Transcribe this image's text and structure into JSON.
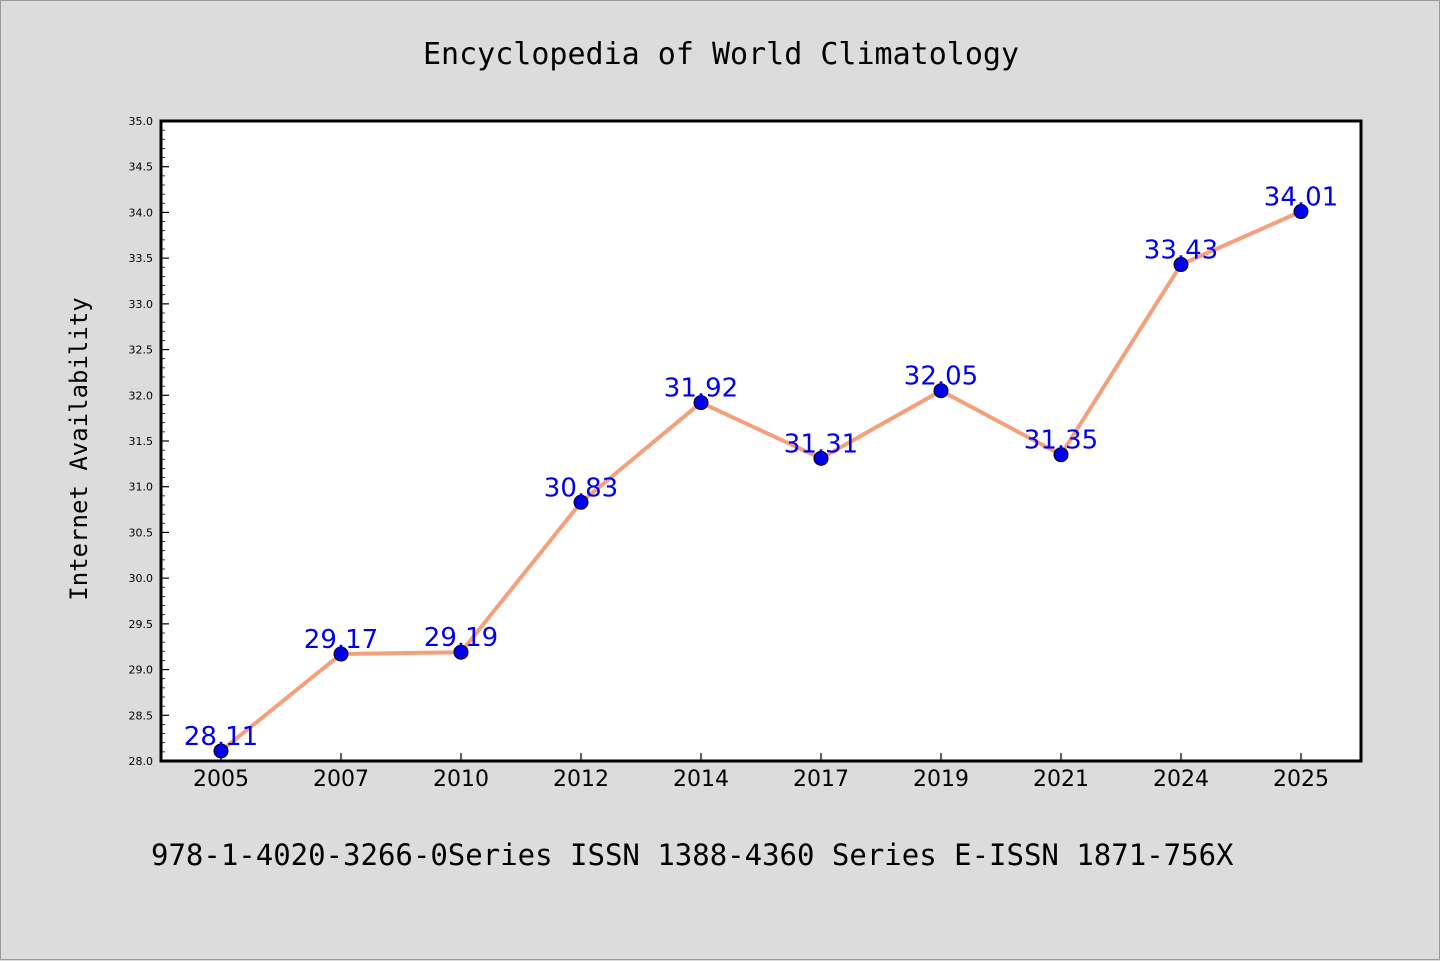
{
  "colors": {
    "background": "#dcdcdc",
    "plot_background": "#ffffff",
    "line": "#f4a07c",
    "marker": "#0000ee",
    "label": "#0000ee",
    "text": "#000000"
  },
  "footer": "978-1-4020-3266-0Series ISSN 1388-4360 Series E-ISSN 1871-756X",
  "chart_data": {
    "type": "line",
    "title": "Encyclopedia of World Climatology",
    "xlabel": "",
    "ylabel": "Internet Availability",
    "categories": [
      "2005",
      "2007",
      "2010",
      "2012",
      "2014",
      "2017",
      "2019",
      "2021",
      "2024",
      "2025"
    ],
    "series": [
      {
        "values": [
          28.11,
          29.17,
          29.19,
          30.83,
          31.92,
          31.31,
          32.05,
          31.35,
          33.43,
          34.01
        ],
        "data_labels": [
          "28.11",
          "29.17",
          "29.19",
          "30.83",
          "31.92",
          "31.31",
          "32.05",
          "31.35",
          "33.43",
          "34.01"
        ]
      }
    ],
    "ylim": [
      28.0,
      35.0
    ],
    "yticks": [
      "28.0",
      "28.5",
      "29.0",
      "29.5",
      "30.0",
      "30.5",
      "31.0",
      "31.5",
      "32.0",
      "32.5",
      "33.0",
      "33.5",
      "34.0",
      "34.5",
      "35.0"
    ],
    "grid": false,
    "legend": "none"
  }
}
